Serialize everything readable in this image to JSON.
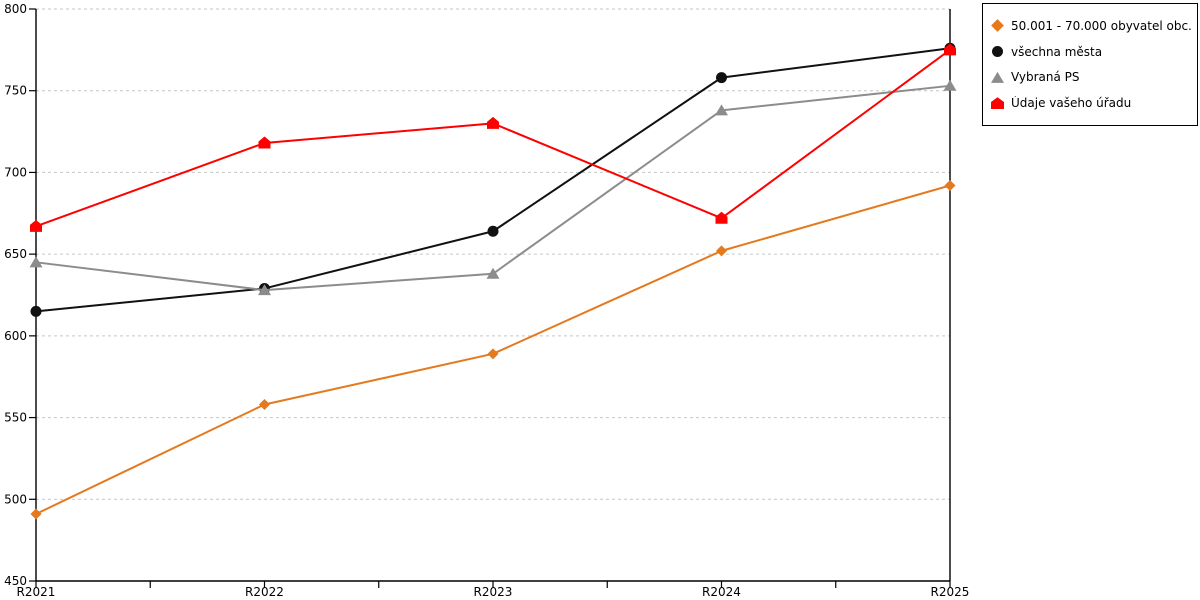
{
  "chart_data": {
    "type": "line",
    "categories": [
      "R2021",
      "R2022",
      "R2023",
      "R2024",
      "R2025"
    ],
    "series": [
      {
        "name": "50.001 - 70.000 obyvatel obc...",
        "marker": "diamond",
        "color": "#E5791E",
        "values": [
          491,
          558,
          589,
          652,
          692
        ]
      },
      {
        "name": "všechna města",
        "marker": "circle",
        "color": "#111111",
        "values": [
          615,
          629,
          664,
          758,
          776
        ]
      },
      {
        "name": "Vybraná PS",
        "marker": "triangle",
        "color": "#8C8C8C",
        "values": [
          645,
          628,
          638,
          738,
          753
        ]
      },
      {
        "name": "Údaje vašeho úřadu",
        "marker": "house",
        "color": "#FF0000",
        "values": [
          667,
          718,
          730,
          672,
          775
        ]
      }
    ],
    "title": "",
    "xlabel": "",
    "ylabel": "",
    "ylim": [
      450,
      800
    ],
    "y_ticks": [
      450,
      500,
      550,
      600,
      650,
      700,
      750,
      800
    ],
    "grid": "horizontal-dashed",
    "legend_position": "top-right"
  },
  "colors": {
    "grid": "#C6C6C6",
    "axis": "#000000",
    "background": "#FFFFFF",
    "text": "#000000"
  }
}
